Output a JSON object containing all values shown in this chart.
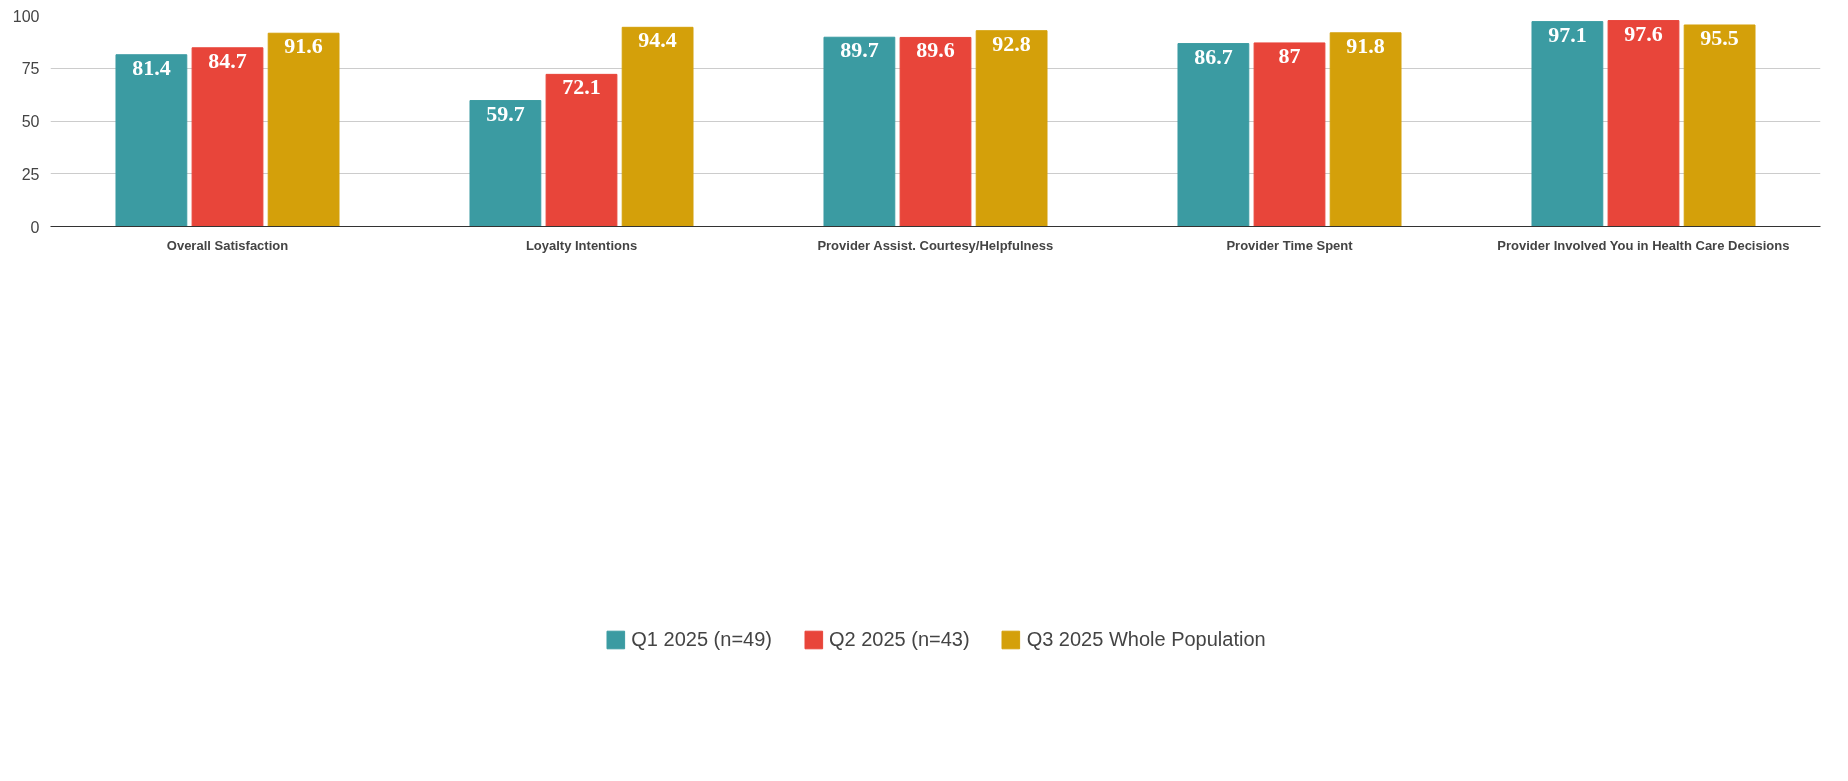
{
  "chart_data": {
    "type": "bar",
    "categories": [
      "Overall Satisfaction",
      "Loyalty Intentions",
      "Provider Assist. Courtesy/Helpfulness",
      "Provider Time Spent",
      "Provider Involved You in Health Care Decisions"
    ],
    "series": [
      {
        "name": "Q1 2025 (n=49)",
        "color": "#3b9ba2",
        "values": [
          81.4,
          59.7,
          89.7,
          86.7,
          97.1
        ]
      },
      {
        "name": "Q2 2025 (n=43)",
        "color": "#e8453a",
        "values": [
          84.7,
          72.1,
          89.6,
          87,
          97.6
        ]
      },
      {
        "name": "Q3 2025 Whole Population",
        "color": "#d4a00a",
        "values": [
          91.6,
          94.4,
          92.8,
          91.8,
          95.5
        ]
      }
    ],
    "ylim": [
      0,
      100
    ],
    "yticks": [
      0,
      25,
      50,
      75,
      100
    ],
    "grid": "y",
    "legend": "bottom",
    "data_labels": true
  }
}
